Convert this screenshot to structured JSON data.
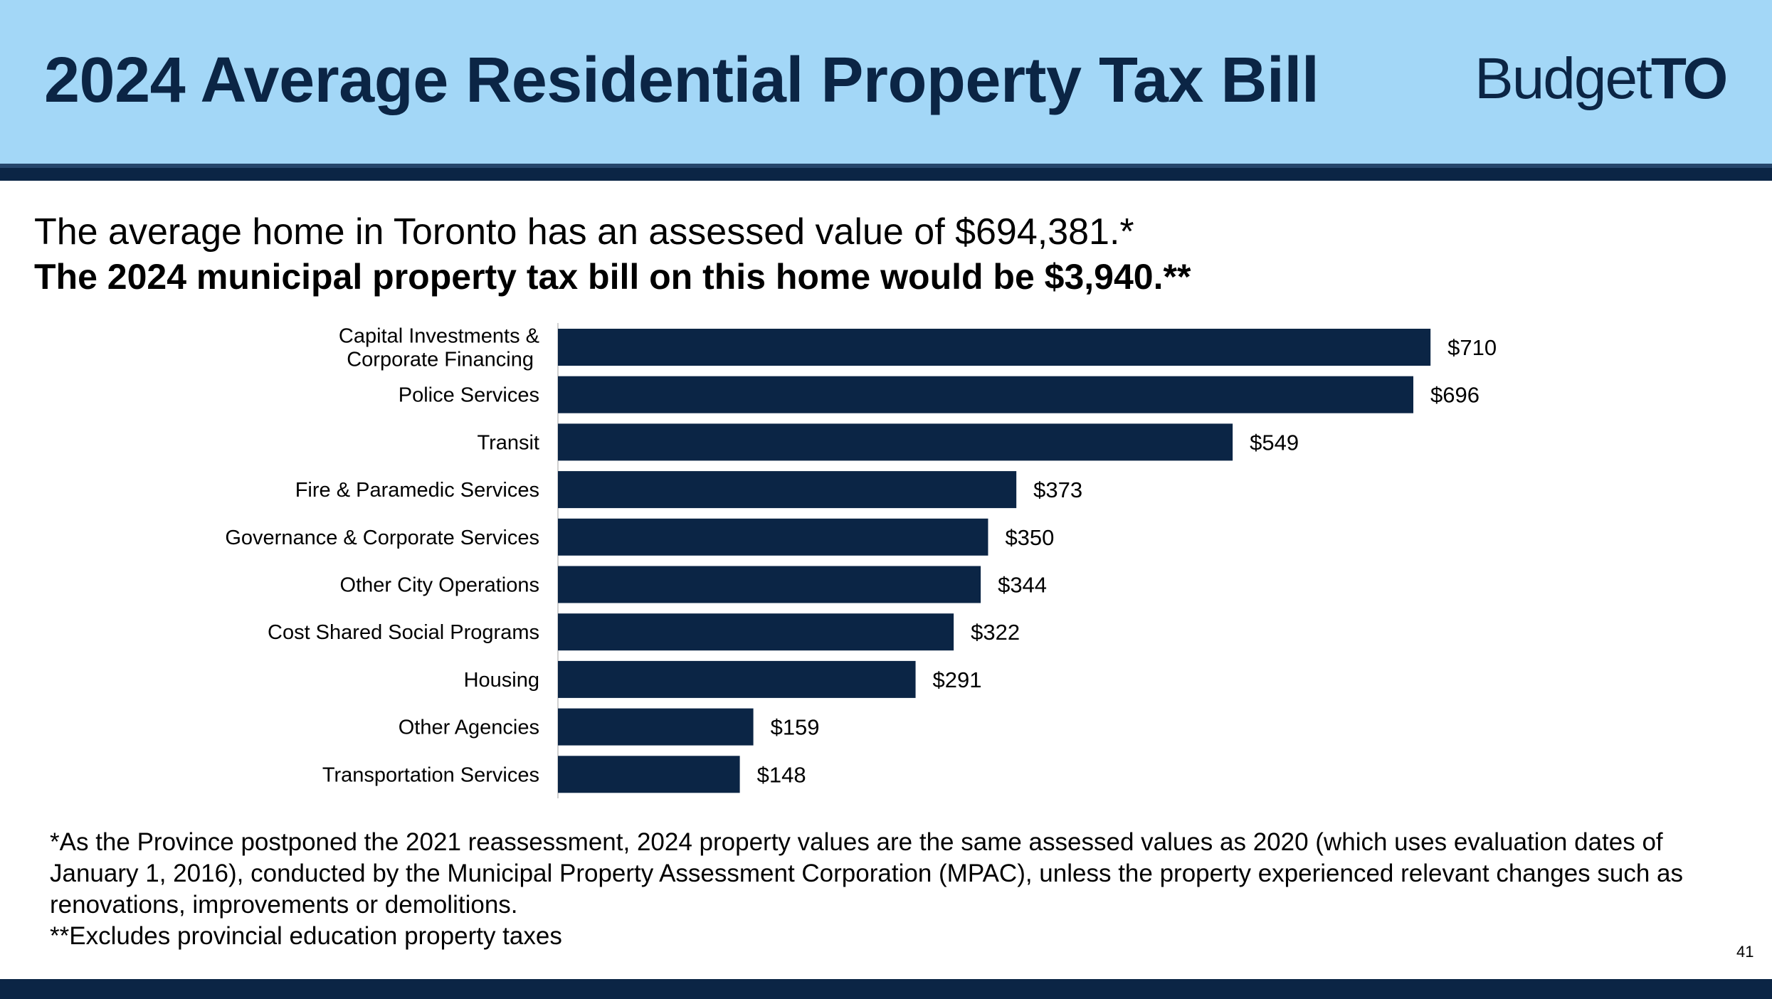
{
  "header": {
    "title": "2024 Average Residential Property Tax Bill",
    "logo_part1": "Budget",
    "logo_part2": "TO"
  },
  "intro": {
    "line1": "The average home in Toronto has an assessed value of $694,381.*",
    "line2": "The 2024 municipal property tax bill on this home would be $3,940.**"
  },
  "chart_data": {
    "type": "bar",
    "orientation": "horizontal",
    "categories": [
      "Capital Investments & Corporate Financing",
      "Police Services",
      "Transit",
      "Fire & Paramedic Services",
      "Governance & Corporate Services",
      "Other City Operations",
      "Cost Shared Social Programs",
      "Housing",
      "Other Agencies",
      "Transportation Services"
    ],
    "category_label_lines": [
      [
        "Capital Investments &",
        "Corporate Financing"
      ],
      [
        "Police Services"
      ],
      [
        "Transit"
      ],
      [
        "Fire & Paramedic Services"
      ],
      [
        "Governance & Corporate Services"
      ],
      [
        "Other City Operations"
      ],
      [
        "Cost Shared Social Programs"
      ],
      [
        "Housing"
      ],
      [
        "Other Agencies"
      ],
      [
        "Transportation Services"
      ]
    ],
    "values": [
      710,
      696,
      549,
      373,
      350,
      344,
      322,
      291,
      159,
      148
    ],
    "value_labels": [
      "$710",
      "$696",
      "$549",
      "$373",
      "$350",
      "$344",
      "$322",
      "$291",
      "$159",
      "$148"
    ],
    "bar_color": "#0b2545",
    "grid": false,
    "legend": "none"
  },
  "footnotes": {
    "note1": "*As the Province postponed the 2021 reassessment, 2024 property values are the same assessed values as 2020 (which uses evaluation dates of January 1, 2016), conducted by the Municipal Property Assessment Corporation (MPAC), unless the property experienced relevant changes such as renovations, improvements or demolitions.",
    "note2": "**Excludes provincial education property taxes"
  },
  "page_number": "41",
  "colors": {
    "header_bg": "#a3d7f7",
    "navy": "#0b2545"
  }
}
